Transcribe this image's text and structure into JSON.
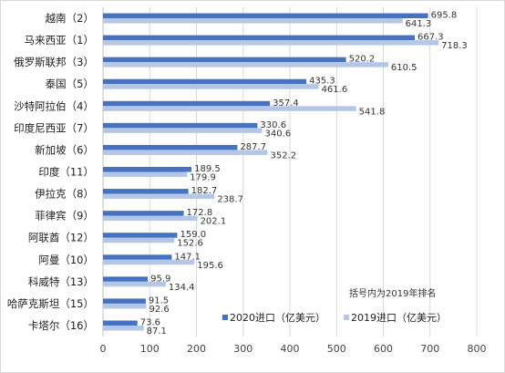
{
  "chart_data": {
    "type": "bar",
    "orientation": "horizontal",
    "categories": [
      "越南（2）",
      "马来西亚（1）",
      "俄罗斯联邦（3）",
      "泰国（5）",
      "沙特阿拉伯（4）",
      "印度尼西亚（7）",
      "新加坡（6）",
      "印度（11）",
      "伊拉克（8）",
      "菲律宾（9）",
      "阿联酋（12）",
      "阿曼（10）",
      "科威特（13）",
      "哈萨克斯坦（15）",
      "卡塔尔（16）"
    ],
    "series": [
      {
        "name": "2020进口（亿美元）",
        "color": "#4472c4",
        "values": [
          695.8,
          667.3,
          520.2,
          435.3,
          357.4,
          330.6,
          287.7,
          189.5,
          182.7,
          172.8,
          159.0,
          147.1,
          95.9,
          91.5,
          73.6
        ]
      },
      {
        "name": "2019进口（亿美元）",
        "color": "#b4c7e7",
        "values": [
          641.3,
          718.3,
          610.5,
          461.6,
          541.8,
          340.6,
          352.2,
          179.9,
          238.7,
          202.1,
          152.6,
          195.6,
          134.4,
          92.6,
          87.1
        ]
      }
    ],
    "xlim": [
      0,
      800
    ],
    "xticks": [
      "0",
      "100",
      "200",
      "300",
      "400",
      "500",
      "600",
      "700",
      "800"
    ],
    "grid": true,
    "legend_position": "bottom-right",
    "annotation": "括号内为2019年排名",
    "title": "",
    "xlabel": "",
    "ylabel": ""
  }
}
